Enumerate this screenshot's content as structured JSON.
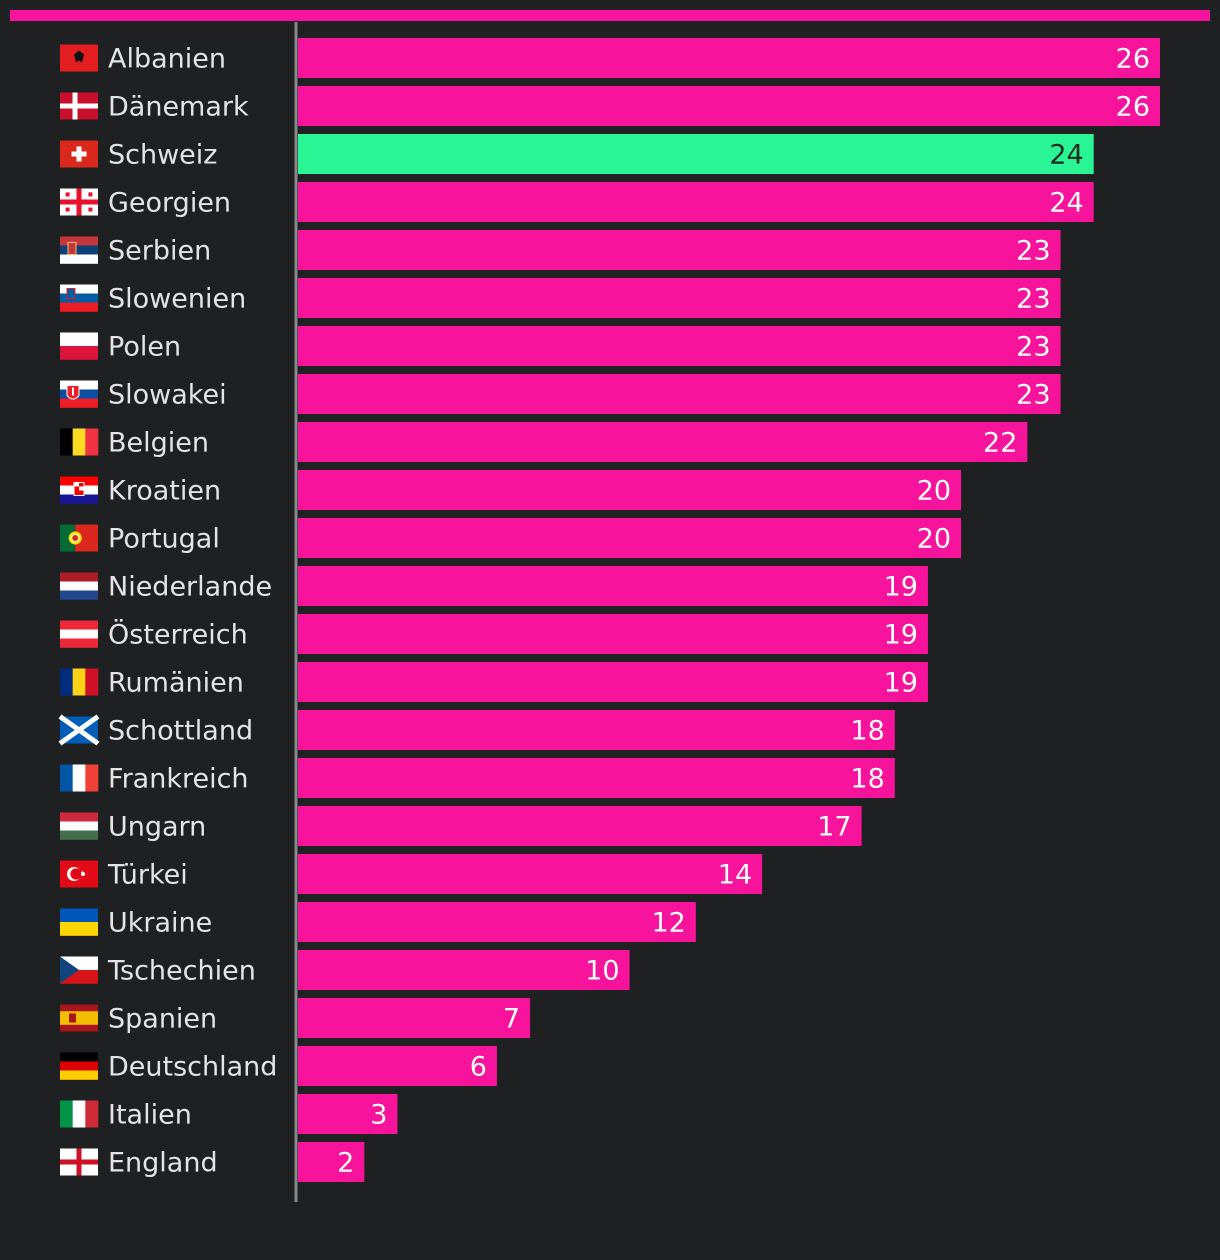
{
  "colors": {
    "background": "#1f2022",
    "bar": "#f7139b",
    "highlight_bar": "#29f594",
    "axis": "#8a8a8a",
    "label_text": "#e4e4e4",
    "value_text": "#ffffff",
    "highlight_value_text": "#1e2a22",
    "top_bar": "#f7139b"
  },
  "chart_data": {
    "type": "bar",
    "orientation": "horizontal",
    "xlim": [
      0,
      26
    ],
    "grid": false,
    "legend": "none",
    "highlight": "Schweiz",
    "categories": [
      "Albanien",
      "Dänemark",
      "Schweiz",
      "Georgien",
      "Serbien",
      "Slowenien",
      "Polen",
      "Slowakei",
      "Belgien",
      "Kroatien",
      "Portugal",
      "Niederlande",
      "Österreich",
      "Rumänien",
      "Schottland",
      "Frankreich",
      "Ungarn",
      "Türkei",
      "Ukraine",
      "Tschechien",
      "Spanien",
      "Deutschland",
      "Italien",
      "England"
    ],
    "values": [
      26,
      26,
      24,
      24,
      23,
      23,
      23,
      23,
      22,
      20,
      20,
      19,
      19,
      19,
      18,
      18,
      17,
      14,
      12,
      10,
      7,
      6,
      3,
      2
    ],
    "flags": [
      "albania-flag",
      "denmark-flag",
      "switzerland-flag",
      "georgia-flag",
      "serbia-flag",
      "slovenia-flag",
      "poland-flag",
      "slovakia-flag",
      "belgium-flag",
      "croatia-flag",
      "portugal-flag",
      "netherlands-flag",
      "austria-flag",
      "romania-flag",
      "scotland-flag",
      "france-flag",
      "hungary-flag",
      "turkey-flag",
      "ukraine-flag",
      "czechia-flag",
      "spain-flag",
      "germany-flag",
      "italy-flag",
      "england-flag"
    ]
  }
}
